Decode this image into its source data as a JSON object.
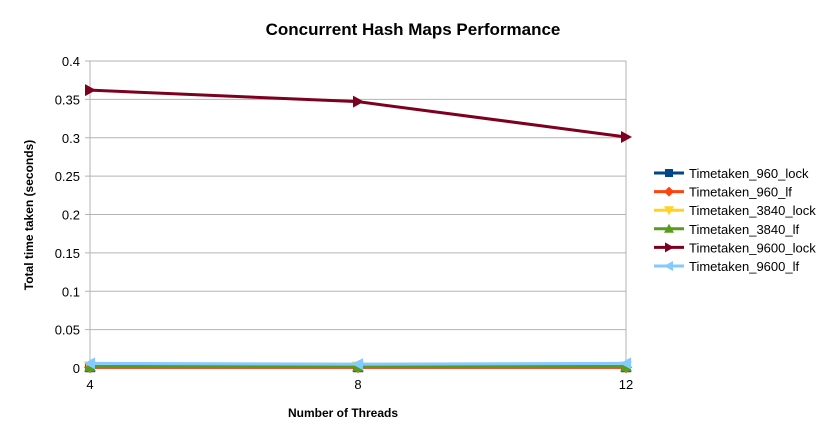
{
  "chart_data": {
    "type": "line",
    "title": "Concurrent Hash Maps Performance",
    "xlabel": "Number of Threads",
    "ylabel": "Total time taken (seconds)",
    "categories": [
      "4",
      "8",
      "12"
    ],
    "ylim": [
      0,
      0.4
    ],
    "yticks": [
      "0",
      "0.05",
      "0.1",
      "0.15",
      "0.2",
      "0.25",
      "0.3",
      "0.35",
      "0.4"
    ],
    "grid": true,
    "legend_position": "right",
    "series": [
      {
        "name": "Timetaken_960_lock",
        "values": [
          0.001,
          0.001,
          0.001
        ],
        "color": "#004586",
        "marker": "square"
      },
      {
        "name": "Timetaken_960_lf",
        "values": [
          0.001,
          0.001,
          0.001
        ],
        "color": "#ff420e",
        "marker": "diamond"
      },
      {
        "name": "Timetaken_3840_lock",
        "values": [
          0.002,
          0.002,
          0.002
        ],
        "color": "#ffd320",
        "marker": "triangle-down"
      },
      {
        "name": "Timetaken_3840_lf",
        "values": [
          0.002,
          0.002,
          0.002
        ],
        "color": "#579d1c",
        "marker": "triangle-up"
      },
      {
        "name": "Timetaken_9600_lock",
        "values": [
          0.362,
          0.347,
          0.301
        ],
        "color": "#7e0021",
        "marker": "triangle-right"
      },
      {
        "name": "Timetaken_9600_lf",
        "values": [
          0.006,
          0.005,
          0.006
        ],
        "color": "#83caff",
        "marker": "triangle-left"
      }
    ]
  }
}
